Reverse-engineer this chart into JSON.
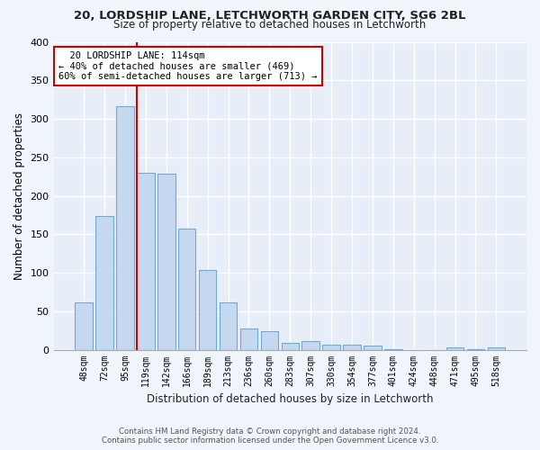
{
  "title1": "20, LORDSHIP LANE, LETCHWORTH GARDEN CITY, SG6 2BL",
  "title2": "Size of property relative to detached houses in Letchworth",
  "xlabel": "Distribution of detached houses by size in Letchworth",
  "ylabel": "Number of detached properties",
  "bar_labels": [
    "48sqm",
    "72sqm",
    "95sqm",
    "119sqm",
    "142sqm",
    "166sqm",
    "189sqm",
    "213sqm",
    "236sqm",
    "260sqm",
    "283sqm",
    "307sqm",
    "330sqm",
    "354sqm",
    "377sqm",
    "401sqm",
    "424sqm",
    "448sqm",
    "471sqm",
    "495sqm",
    "518sqm"
  ],
  "bar_values": [
    62,
    174,
    316,
    230,
    229,
    157,
    103,
    62,
    28,
    24,
    9,
    11,
    6,
    6,
    5,
    1,
    0,
    0,
    3,
    1,
    3
  ],
  "bar_color": "#c5d8f0",
  "bar_edge_color": "#6aaad4",
  "plot_bg_color": "#e8eef8",
  "fig_bg_color": "#f0f4fb",
  "grid_color": "#ffffff",
  "annotation_text": "  20 LORDSHIP LANE: 114sqm\n← 40% of detached houses are smaller (469)\n60% of semi-detached houses are larger (713) →",
  "annotation_box_color": "#ffffff",
  "annotation_box_edge": "#cc0000",
  "footer1": "Contains HM Land Registry data © Crown copyright and database right 2024.",
  "footer2": "Contains public sector information licensed under the Open Government Licence v3.0.",
  "ylim": [
    0,
    400
  ],
  "red_line_color": "#cc0000",
  "red_line_x": 2.575
}
